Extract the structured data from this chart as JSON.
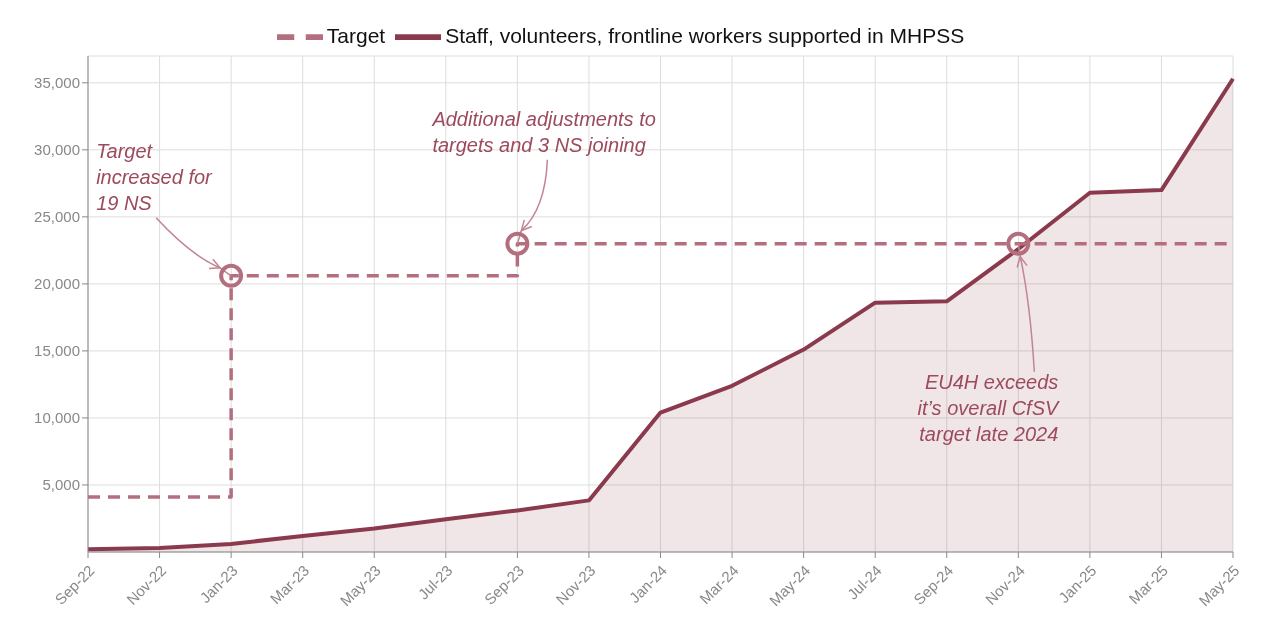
{
  "chart_data": {
    "type": "line",
    "categories": [
      "Sep-22",
      "Nov-22",
      "Jan-23",
      "Mar-23",
      "May-23",
      "Jul-23",
      "Sep-23",
      "Nov-23",
      "Jan-24",
      "Mar-24",
      "May-24",
      "Jul-24",
      "Sep-24",
      "Nov-24",
      "Jan-25",
      "Mar-25",
      "May-25"
    ],
    "series": [
      {
        "name": "Target",
        "type": "step",
        "line_style": "dashed",
        "color": "#b36f7d",
        "values": [
          4100,
          4100,
          20600,
          20600,
          20600,
          20600,
          23000,
          23000,
          23000,
          23000,
          23000,
          23000,
          23000,
          23000,
          23000,
          23000,
          23000
        ]
      },
      {
        "name": "Staff, volunteers, frontline workers supported in MHPSS",
        "type": "area",
        "color": "#8a3a4c",
        "values": [
          200,
          300,
          600,
          1200,
          1750,
          2450,
          3100,
          3850,
          10400,
          12400,
          15100,
          18600,
          18700,
          22600,
          26800,
          27000,
          35300
        ]
      }
    ],
    "ylim": [
      0,
      37000
    ],
    "yticks": [
      {
        "value": 5000,
        "label": "5,000"
      },
      {
        "value": 10000,
        "label": "10,000"
      },
      {
        "value": 15000,
        "label": "15,000"
      },
      {
        "value": 20000,
        "label": "20,000"
      },
      {
        "value": 25000,
        "label": "25,000"
      },
      {
        "value": 30000,
        "label": "30,000"
      },
      {
        "value": 35000,
        "label": "35,000"
      }
    ],
    "grid": true,
    "legend": "top",
    "annotations": [
      {
        "text": "Target\nincreased for\n19 NS",
        "x": "Jan-23",
        "y": 20600
      },
      {
        "text": "Additional adjustments to\ntargets and 3 NS joining",
        "x": "Sep-23",
        "y": 23000
      },
      {
        "text": "EU4H exceeds\nit’s overall CfSV\ntarget late 2024",
        "x": "Nov-24",
        "y": 23000
      }
    ]
  }
}
